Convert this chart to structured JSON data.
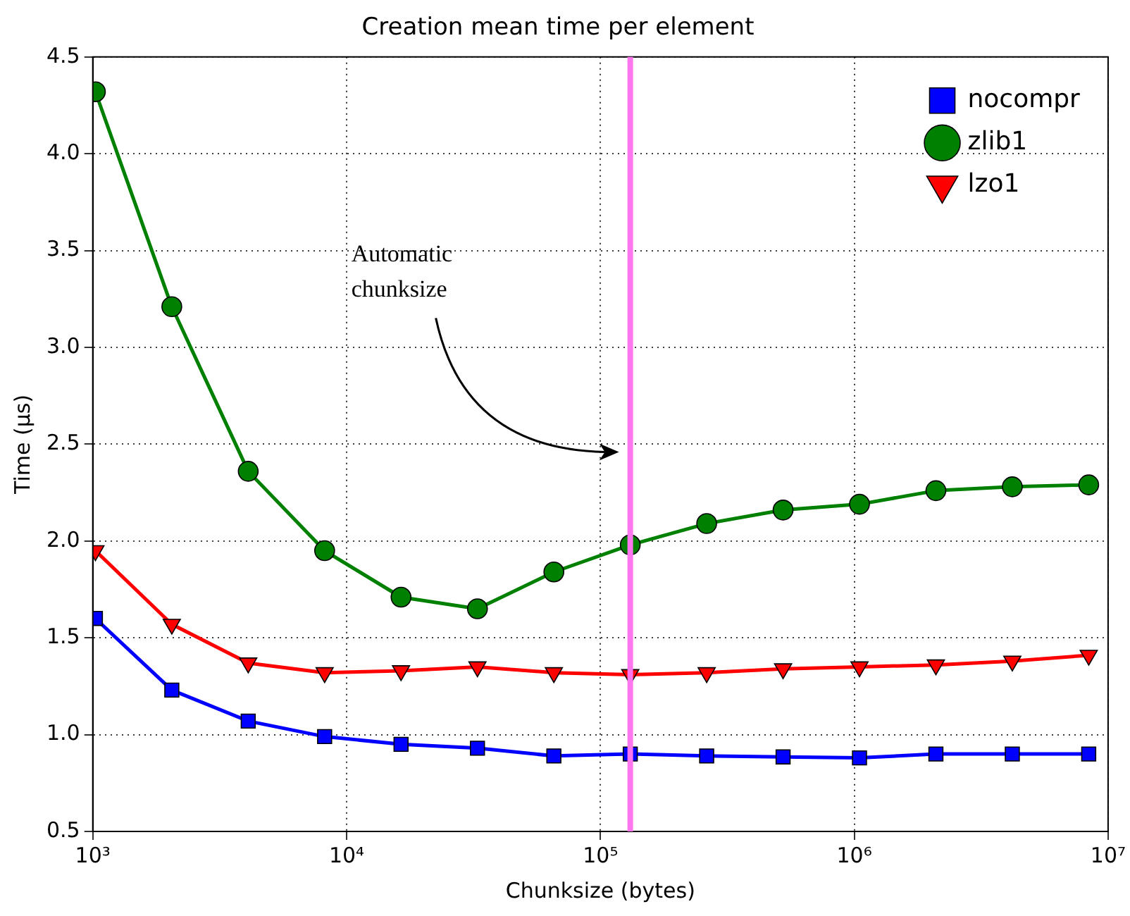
{
  "chart_data": {
    "type": "line",
    "title": "Creation mean time per element",
    "xlabel": "Chunksize (bytes)",
    "ylabel": "Time (µs)",
    "x": [
      1024,
      2048,
      4096,
      8192,
      16384,
      32768,
      65536,
      131072,
      262144,
      524288,
      1048576,
      2097152,
      4194304,
      8388608
    ],
    "series": [
      {
        "name": "nocompr",
        "color": "#0000ff",
        "marker": "square",
        "values": [
          1.6,
          1.23,
          1.07,
          0.99,
          0.95,
          0.93,
          0.89,
          0.9,
          0.89,
          0.885,
          0.88,
          0.9,
          0.9,
          0.9
        ]
      },
      {
        "name": "zlib1",
        "color": "#008000",
        "marker": "circle",
        "values": [
          4.32,
          3.21,
          2.36,
          1.95,
          1.71,
          1.65,
          1.84,
          1.98,
          2.09,
          2.16,
          2.19,
          2.26,
          2.28,
          2.29
        ]
      },
      {
        "name": "lzo1",
        "color": "#ff0000",
        "marker": "triangle",
        "values": [
          1.95,
          1.57,
          1.37,
          1.32,
          1.33,
          1.35,
          1.32,
          1.31,
          1.32,
          1.34,
          1.35,
          1.36,
          1.38,
          1.41
        ]
      }
    ],
    "log": "x",
    "xlim": [
      1000,
      10000000
    ],
    "xticks": [
      {
        "value": 1000,
        "label": "10³"
      },
      {
        "value": 10000,
        "label": "10⁴"
      },
      {
        "value": 100000,
        "label": "10⁵"
      },
      {
        "value": 1000000,
        "label": "10⁶"
      },
      {
        "value": 10000000,
        "label": "10⁷"
      }
    ],
    "ylim": [
      0.5,
      4.5
    ],
    "yticks": [
      {
        "value": 0.5,
        "label": "0.5"
      },
      {
        "value": 1,
        "label": "1.0"
      },
      {
        "value": 1.5,
        "label": "1.5"
      },
      {
        "value": 2,
        "label": "2.0"
      },
      {
        "value": 2.5,
        "label": "2.5"
      },
      {
        "value": 3,
        "label": "3.0"
      },
      {
        "value": 3.5,
        "label": "3.5"
      },
      {
        "value": 4,
        "label": "4.0"
      },
      {
        "value": 4.5,
        "label": "4.5"
      }
    ],
    "ref_lines": [
      {
        "axis": "x",
        "value": 131072,
        "color": "#ff77ee"
      }
    ],
    "annotations": [
      "Automatic chunksize"
    ],
    "grid": true,
    "legend": "top right",
    "line_style": "solid"
  }
}
